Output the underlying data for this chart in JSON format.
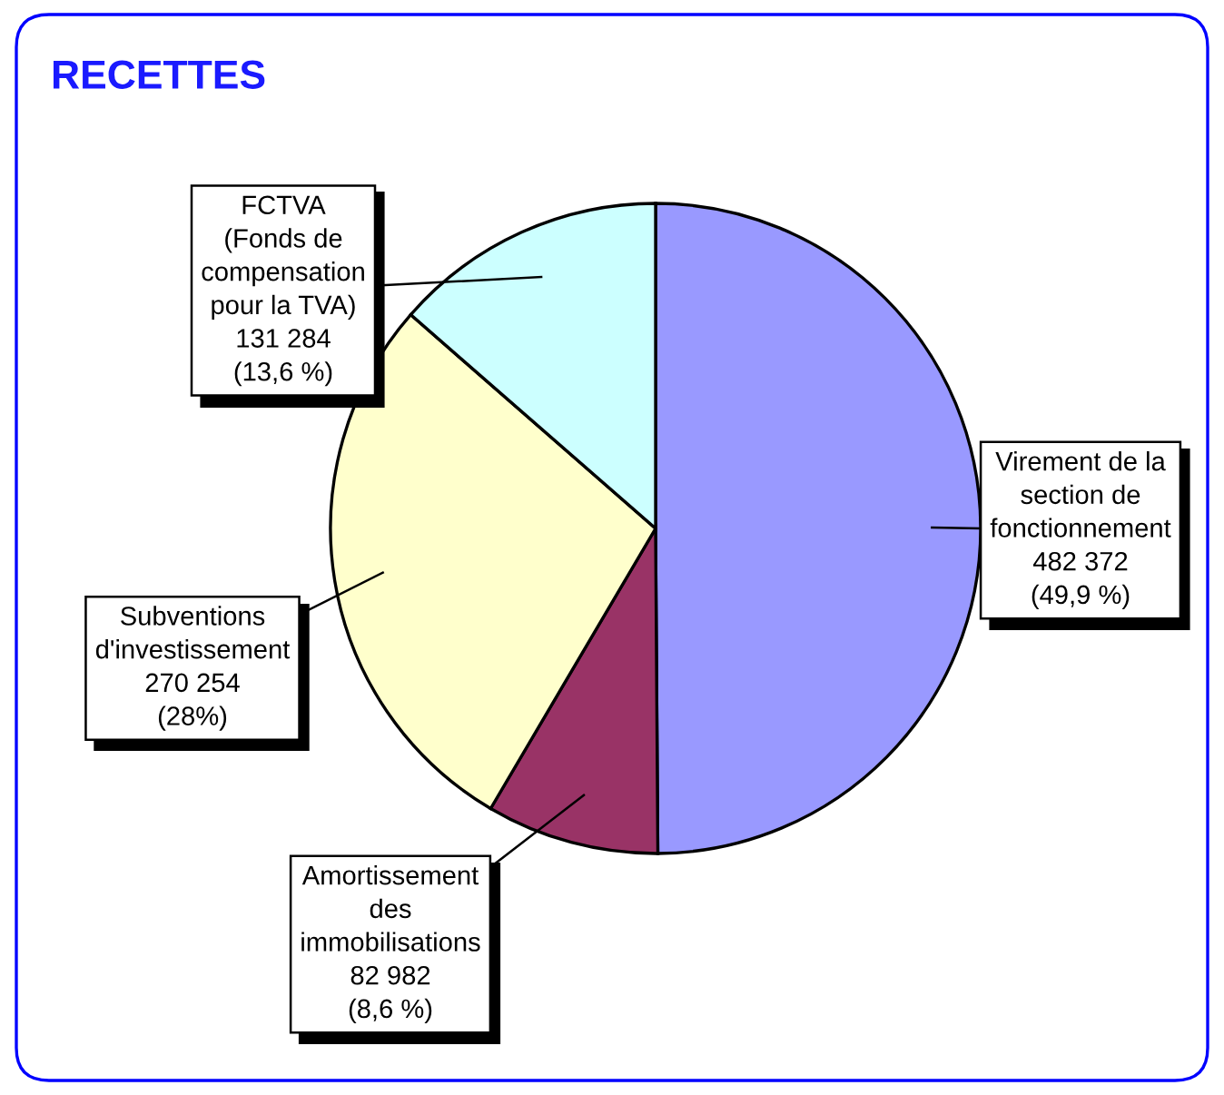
{
  "chart_data": {
    "type": "pie",
    "title": "RECETTES",
    "categories": [
      "Virement de la\nsection de\nfonctionnement",
      "Amortissement\ndes\nimmobilisations",
      "Subventions\nd'investissement",
      "FCTVA\n(Fonds de\ncompensation\npour la TVA)"
    ],
    "values": [
      482372,
      82982,
      270254,
      131284
    ],
    "colors": [
      "#9999ff",
      "#993366",
      "#ffffcc",
      "#ccffff"
    ],
    "value_labels": [
      "482 372\n(49,9 %)",
      "82 982\n(8,6 %)",
      "270 254\n(28%)",
      "131 284\n(13,6 %)"
    ]
  }
}
